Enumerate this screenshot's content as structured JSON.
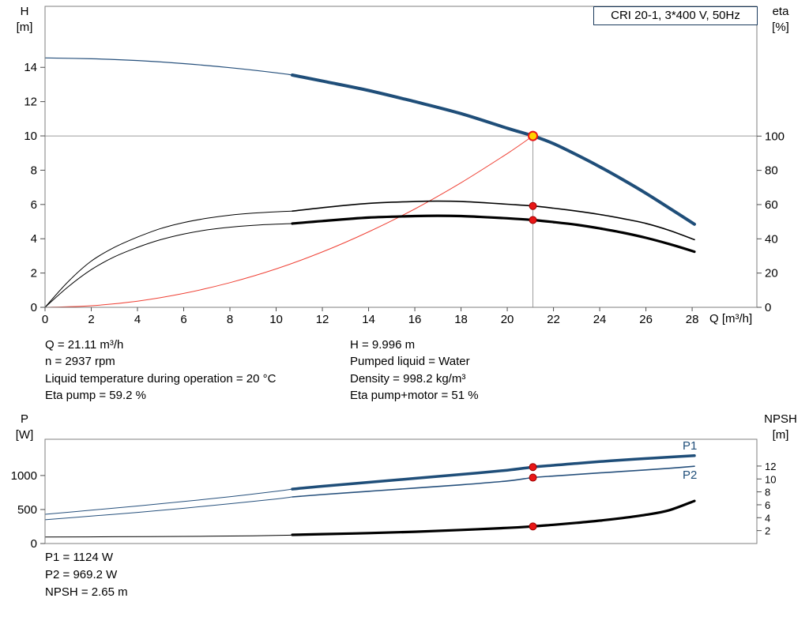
{
  "colors": {
    "accent_blue": "#1f4e79",
    "thin_blue": "#26507c",
    "red": "#ef4135",
    "marker_red": "#e81717",
    "marker_yellow": "#ffd200",
    "crosshair_gray": "#9c9c9c",
    "frame_gray": "#7f7f7f"
  },
  "info": {
    "left": [
      "Q = 21.11 m³/h",
      "n = 2937 rpm",
      "Liquid temperature during operation = 20 °C",
      "Eta pump = 59.2 %"
    ],
    "right": [
      "H = 9.996 m",
      "Pumped liquid = Water",
      "Density = 998.2 kg/m³",
      "Eta pump+motor = 51 %"
    ],
    "bottom": [
      "P1 = 1124 W",
      "P2 = 969.2 W",
      "NPSH = 2.65 m"
    ]
  },
  "chart_data": [
    {
      "type": "line",
      "title": "CRI 20-1, 3*400 V, 50Hz",
      "x_axis": {
        "label": "Q [m³/h]",
        "min": 0,
        "max": 30.8,
        "ticks": [
          0,
          2,
          4,
          6,
          8,
          10,
          12,
          14,
          16,
          18,
          20,
          22,
          24,
          26,
          28
        ]
      },
      "y_left": {
        "label": "H",
        "unit": "[m]",
        "min": 0,
        "max": 17.56,
        "ticks": [
          0,
          2,
          4,
          6,
          8,
          10,
          12,
          14
        ]
      },
      "y_right": {
        "label": "eta",
        "unit": "[%]",
        "min": 0,
        "max": 175.8,
        "ticks": [
          0,
          20,
          40,
          60,
          80,
          100
        ]
      },
      "grid": false,
      "duty_point": {
        "q": 21.11,
        "h": 9.996,
        "eta_pump": 59.2,
        "eta_pump_motor": 51
      },
      "crosshair": {
        "q": 21.11,
        "value": 9.996,
        "axis": "left"
      },
      "series": [
        {
          "name": "system-curve",
          "axis": "left",
          "color": "#ef4135",
          "width": 1,
          "points": [
            [
              0,
              0
            ],
            [
              2,
              0.09
            ],
            [
              4,
              0.36
            ],
            [
              6,
              0.81
            ],
            [
              8,
              1.44
            ],
            [
              10,
              2.24
            ],
            [
              12,
              3.23
            ],
            [
              14,
              4.4
            ],
            [
              16,
              5.74
            ],
            [
              18,
              7.27
            ],
            [
              20,
              8.97
            ],
            [
              21.11,
              10.0
            ]
          ]
        },
        {
          "name": "qh-curve-extension",
          "axis": "left",
          "color": "#26507c",
          "width": 1.2,
          "points": [
            [
              0,
              14.55
            ],
            [
              2,
              14.5
            ],
            [
              4,
              14.4
            ],
            [
              6,
              14.22
            ],
            [
              8,
              13.98
            ],
            [
              10,
              13.68
            ],
            [
              10.7,
              13.55
            ]
          ]
        },
        {
          "name": "qh-curve",
          "axis": "left",
          "color": "#1f4e79",
          "width": 4,
          "points": [
            [
              10.7,
              13.55
            ],
            [
              12,
              13.2
            ],
            [
              14,
              12.65
            ],
            [
              16,
              12.0
            ],
            [
              18,
              11.3
            ],
            [
              20,
              10.45
            ],
            [
              21.11,
              10.0
            ],
            [
              22,
              9.55
            ],
            [
              23,
              8.9
            ],
            [
              24,
              8.2
            ],
            [
              25,
              7.45
            ],
            [
              26,
              6.65
            ],
            [
              27,
              5.8
            ],
            [
              28.1,
              4.85
            ]
          ]
        },
        {
          "name": "eta-pump-extension",
          "axis": "right",
          "color": "#000000",
          "width": 1,
          "points": [
            [
              0,
              0
            ],
            [
              1,
              15
            ],
            [
              2,
              27
            ],
            [
              3,
              35
            ],
            [
              4,
              41
            ],
            [
              5,
              46
            ],
            [
              6,
              49.5
            ],
            [
              7,
              52
            ],
            [
              8,
              53.8
            ],
            [
              9,
              55
            ],
            [
              10,
              55.8
            ],
            [
              10.7,
              56.2
            ]
          ]
        },
        {
          "name": "eta-pump-curve",
          "axis": "right",
          "color": "#000000",
          "width": 1.6,
          "points": [
            [
              10.7,
              56.2
            ],
            [
              12,
              58.2
            ],
            [
              14,
              60.7
            ],
            [
              16,
              61.8
            ],
            [
              17,
              62
            ],
            [
              18,
              61.8
            ],
            [
              19,
              61.1
            ],
            [
              20,
              60.2
            ],
            [
              21.11,
              59.2
            ],
            [
              22,
              57.9
            ],
            [
              23,
              56.2
            ],
            [
              24,
              54.2
            ],
            [
              25,
              51.8
            ],
            [
              26,
              49
            ],
            [
              27,
              45
            ],
            [
              28.1,
              39.5
            ]
          ]
        },
        {
          "name": "eta-pump-motor-extension",
          "axis": "right",
          "color": "#000000",
          "width": 1,
          "points": [
            [
              0,
              0
            ],
            [
              1,
              12
            ],
            [
              2,
              22
            ],
            [
              3,
              29.5
            ],
            [
              4,
              35
            ],
            [
              5,
              39.5
            ],
            [
              6,
              42.8
            ],
            [
              7,
              45.2
            ],
            [
              8,
              46.8
            ],
            [
              9,
              47.9
            ],
            [
              10,
              48.6
            ],
            [
              10.7,
              48.9
            ]
          ]
        },
        {
          "name": "eta-pump-motor-curve",
          "axis": "right",
          "color": "#000000",
          "width": 3.2,
          "points": [
            [
              10.7,
              48.9
            ],
            [
              12,
              50.4
            ],
            [
              14,
              52.4
            ],
            [
              16,
              53.3
            ],
            [
              17,
              53.5
            ],
            [
              18,
              53.3
            ],
            [
              19,
              52.7
            ],
            [
              20,
              52
            ],
            [
              21.11,
              51
            ],
            [
              22,
              49.8
            ],
            [
              23,
              48.2
            ],
            [
              24,
              46.1
            ],
            [
              25,
              43.6
            ],
            [
              26,
              40.6
            ],
            [
              27,
              37
            ],
            [
              28.1,
              32.5
            ]
          ]
        }
      ],
      "markers": [
        {
          "name": "duty-point",
          "q": 21.11,
          "value": 9.996,
          "axis": "left",
          "fill": "#ffd200",
          "stroke": "#e81717",
          "stroke_width": 2,
          "r": 5.5
        },
        {
          "name": "eta-pump-point",
          "q": 21.11,
          "value": 59.2,
          "axis": "right",
          "fill": "#e81717",
          "stroke": "#9b0000",
          "stroke_width": 1,
          "r": 4.5
        },
        {
          "name": "eta-pump-motor-point",
          "q": 21.11,
          "value": 51,
          "axis": "right",
          "fill": "#e81717",
          "stroke": "#9b0000",
          "stroke_width": 1,
          "r": 4.5
        }
      ]
    },
    {
      "type": "line",
      "title": "",
      "x_axis": {
        "label": "",
        "min": 0,
        "max": 30.8,
        "ticks": []
      },
      "y_left": {
        "label": "P",
        "unit": "[W]",
        "min": 0,
        "max": 1533,
        "ticks": [
          0,
          500,
          1000
        ]
      },
      "y_right": {
        "label": "NPSH",
        "unit": "[m]",
        "min": 0,
        "max": 16.15,
        "ticks": [
          2,
          4,
          6,
          8,
          10,
          12
        ]
      },
      "grid": false,
      "curve_labels": [
        {
          "text": "P1",
          "color": "#1f4e79"
        },
        {
          "text": "P2",
          "color": "#1f4e79"
        }
      ],
      "series": [
        {
          "name": "p1-curve-extension",
          "axis": "left",
          "color": "#26507c",
          "width": 1,
          "points": [
            [
              0,
              430
            ],
            [
              2,
              490
            ],
            [
              4,
              552
            ],
            [
              6,
              618
            ],
            [
              8,
              688
            ],
            [
              10,
              768
            ],
            [
              10.7,
              800
            ]
          ]
        },
        {
          "name": "p1-curve",
          "axis": "left",
          "color": "#1f4e79",
          "width": 3.5,
          "points": [
            [
              10.7,
              800
            ],
            [
              12,
              842
            ],
            [
              14,
              900
            ],
            [
              16,
              958
            ],
            [
              18,
              1016
            ],
            [
              20,
              1078
            ],
            [
              21.11,
              1124
            ],
            [
              22,
              1150
            ],
            [
              23,
              1178
            ],
            [
              24,
              1204
            ],
            [
              25,
              1228
            ],
            [
              26,
              1250
            ],
            [
              27,
              1270
            ],
            [
              28.1,
              1292
            ]
          ]
        },
        {
          "name": "p2-curve-extension",
          "axis": "left",
          "color": "#26507c",
          "width": 1,
          "points": [
            [
              0,
              350
            ],
            [
              2,
              403
            ],
            [
              4,
              458
            ],
            [
              6,
              518
            ],
            [
              8,
              585
            ],
            [
              10,
              655
            ],
            [
              10.7,
              685
            ]
          ]
        },
        {
          "name": "p2-curve",
          "axis": "left",
          "color": "#26507c",
          "width": 1.6,
          "points": [
            [
              10.7,
              685
            ],
            [
              12,
              720
            ],
            [
              14,
              768
            ],
            [
              16,
              815
            ],
            [
              18,
              863
            ],
            [
              20,
              920
            ],
            [
              21.11,
              969.2
            ],
            [
              22,
              992
            ],
            [
              23,
              1015
            ],
            [
              24,
              1038
            ],
            [
              25,
              1060
            ],
            [
              26,
              1082
            ],
            [
              27,
              1106
            ],
            [
              28.1,
              1136
            ]
          ]
        },
        {
          "name": "npsh-curve-extension",
          "axis": "right",
          "color": "#000000",
          "width": 1,
          "points": [
            [
              0,
              1.0
            ],
            [
              3,
              1.05
            ],
            [
              6,
              1.1
            ],
            [
              9,
              1.2
            ],
            [
              10.7,
              1.3
            ]
          ]
        },
        {
          "name": "npsh-curve",
          "axis": "right",
          "color": "#000000",
          "width": 3.2,
          "points": [
            [
              10.7,
              1.35
            ],
            [
              12,
              1.45
            ],
            [
              14,
              1.62
            ],
            [
              16,
              1.82
            ],
            [
              18,
              2.1
            ],
            [
              20,
              2.42
            ],
            [
              21.11,
              2.65
            ],
            [
              22,
              2.9
            ],
            [
              23,
              3.2
            ],
            [
              24,
              3.55
            ],
            [
              25,
              3.95
            ],
            [
              26,
              4.45
            ],
            [
              27,
              5.15
            ],
            [
              28.1,
              6.6
            ]
          ]
        }
      ],
      "markers": [
        {
          "name": "p1-point",
          "q": 21.11,
          "value": 1124,
          "axis": "left",
          "fill": "#e81717",
          "stroke": "#9b0000",
          "stroke_width": 1,
          "r": 4.5
        },
        {
          "name": "p2-point",
          "q": 21.11,
          "value": 969.2,
          "axis": "left",
          "fill": "#e81717",
          "stroke": "#9b0000",
          "stroke_width": 1,
          "r": 4.5
        },
        {
          "name": "npsh-point",
          "q": 21.11,
          "value": 2.65,
          "axis": "right",
          "fill": "#e81717",
          "stroke": "#9b0000",
          "stroke_width": 1,
          "r": 4.5
        }
      ]
    }
  ]
}
